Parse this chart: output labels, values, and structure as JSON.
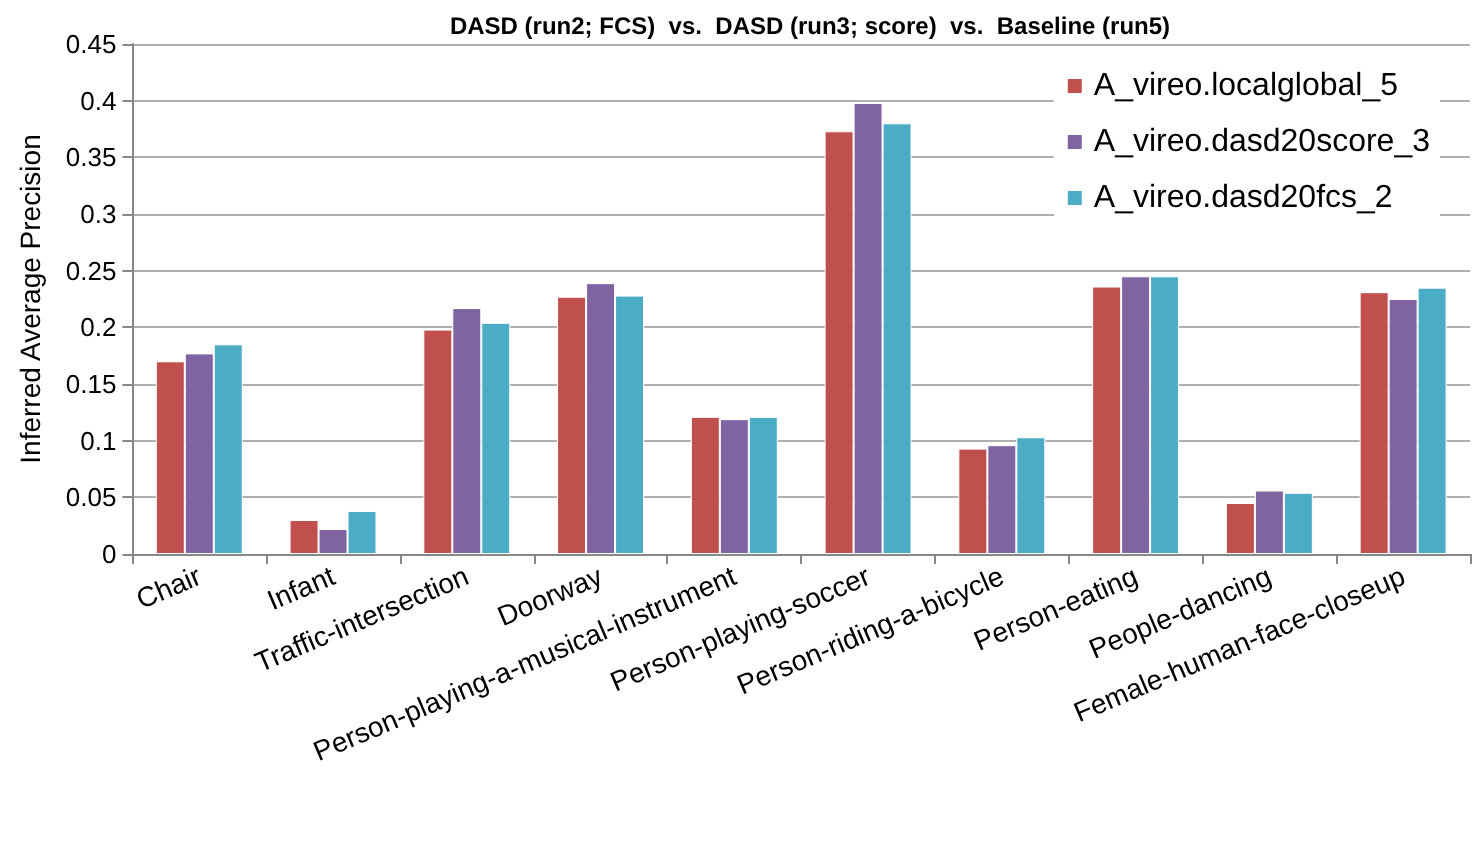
{
  "chart_data": {
    "type": "bar",
    "title": "DASD (run2; FCS)  vs.  DASD (run3; score)  vs.  Baseline (run5)",
    "ylabel": "Inferred Average Precision",
    "categories": [
      "Chair",
      "Infant",
      "Traffic-intersection",
      "Doorway",
      "Person-playing-a-musical-instrument",
      "Person-playing-soccer",
      "Person-riding-a-bicycle",
      "Person-eating",
      "People-dancing",
      "Female-human-face-closeup"
    ],
    "series": [
      {
        "name": "A_vireo.localglobal_5",
        "color": "#c0504d",
        "values": [
          0.17,
          0.03,
          0.198,
          0.227,
          0.121,
          0.373,
          0.093,
          0.236,
          0.045,
          0.231
        ]
      },
      {
        "name": "A_vireo.dasd20score_3",
        "color": "#8064a2",
        "values": [
          0.177,
          0.022,
          0.217,
          0.239,
          0.119,
          0.398,
          0.096,
          0.245,
          0.056,
          0.225
        ]
      },
      {
        "name": "A_vireo.dasd20fcs_2",
        "color": "#4bacc6",
        "values": [
          0.185,
          0.038,
          0.204,
          0.228,
          0.121,
          0.38,
          0.103,
          0.245,
          0.054,
          0.235
        ]
      }
    ],
    "ylim": [
      0,
      0.45
    ],
    "yticks": [
      0,
      0.05,
      0.1,
      0.15,
      0.2,
      0.25,
      0.3,
      0.35,
      0.4,
      0.45
    ],
    "grid": "y",
    "legend": "top right"
  }
}
